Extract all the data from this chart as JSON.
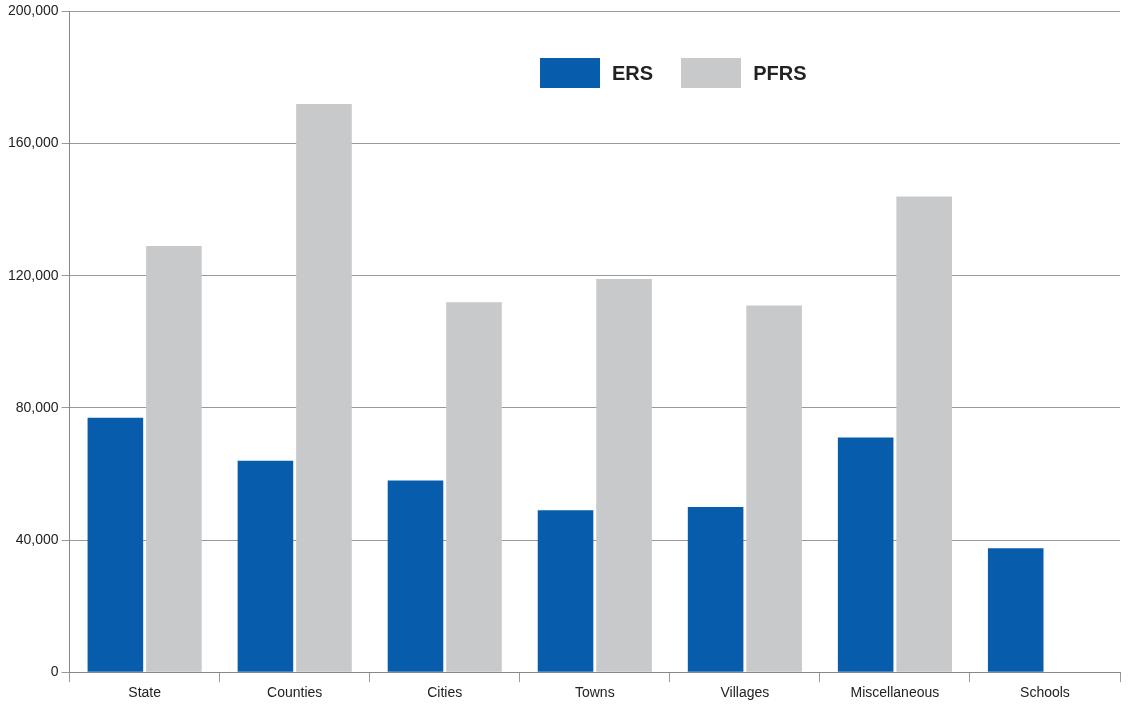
{
  "chart_data": {
    "type": "bar",
    "categories": [
      "State",
      "Counties",
      "Cities",
      "Towns",
      "Villages",
      "Miscellaneous",
      "Schools"
    ],
    "series": [
      {
        "name": "ERS",
        "color": "#075dab",
        "values": [
          77000,
          64000,
          58000,
          49000,
          50000,
          71000,
          37500
        ]
      },
      {
        "name": "PFRS",
        "color": "#c8c9cb",
        "values": [
          129000,
          172000,
          112000,
          119000,
          111000,
          144000,
          null
        ]
      }
    ],
    "ylim": [
      0,
      200000
    ],
    "yticks": [
      {
        "value": 0,
        "label": "0"
      },
      {
        "value": 40000,
        "label": "40,000"
      },
      {
        "value": 80000,
        "label": "80,000"
      },
      {
        "value": 120000,
        "label": "120,000"
      },
      {
        "value": 160000,
        "label": "160,000"
      },
      {
        "value": 200000,
        "label": "200,000"
      }
    ],
    "grid": "y",
    "legend": "top"
  }
}
